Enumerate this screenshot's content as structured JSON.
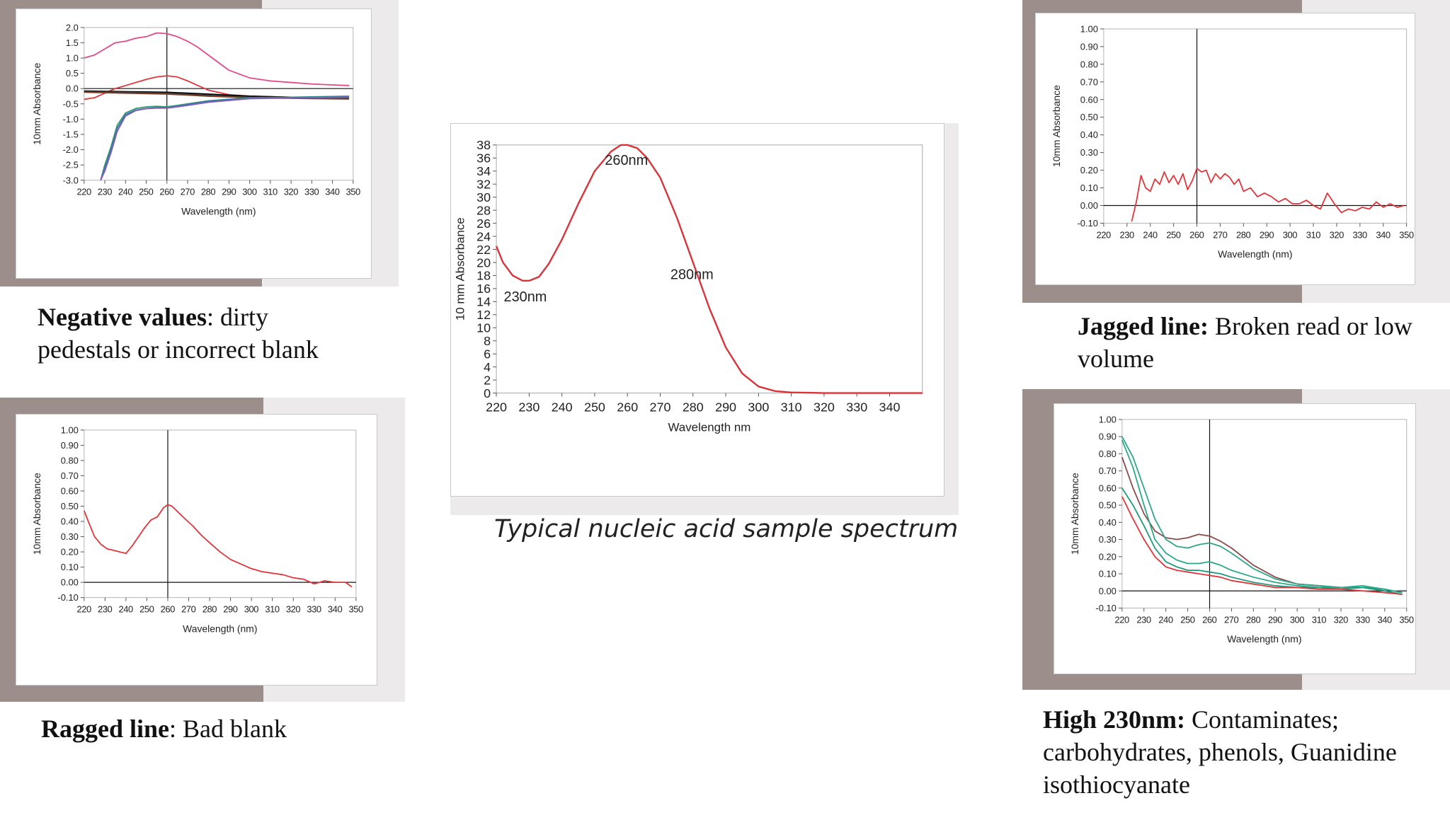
{
  "charts": {
    "negative": {
      "ylabel": "10mm Absorbance",
      "xlabel": "Wavelength (nm)",
      "yticks": [
        "2.0",
        "1.5",
        "1.0",
        "0.5",
        "0.0",
        "-0.5",
        "-1.0",
        "-1.5",
        "-2.0",
        "-2.5",
        "-3.0"
      ],
      "xticks": [
        "220",
        "230",
        "240",
        "250",
        "260",
        "270",
        "280",
        "290",
        "300",
        "310",
        "320",
        "330",
        "340",
        "350"
      ]
    },
    "ragged": {
      "ylabel": "10mm Absorbance",
      "xlabel": "Wavelength (nm)",
      "yticks": [
        "1.00",
        "0.90",
        "0.80",
        "0.70",
        "0.60",
        "0.50",
        "0.40",
        "0.30",
        "0.20",
        "0.10",
        "0.00",
        "-0.10"
      ],
      "xticks": [
        "220",
        "230",
        "240",
        "250",
        "260",
        "270",
        "280",
        "290",
        "300",
        "310",
        "320",
        "330",
        "340",
        "350"
      ]
    },
    "typical": {
      "ylabel": "10 mm Absorbance",
      "xlabel": "Wavelength nm",
      "yticks": [
        "38",
        "36",
        "34",
        "32",
        "30",
        "28",
        "26",
        "24",
        "22",
        "20",
        "18",
        "16",
        "14",
        "12",
        "10",
        "8",
        "6",
        "4",
        "2",
        "0"
      ],
      "xticks": [
        "220",
        "230",
        "240",
        "250",
        "260",
        "270",
        "280",
        "290",
        "300",
        "310",
        "320",
        "330",
        "340"
      ],
      "annotations": [
        "260nm",
        "280nm",
        "230nm"
      ],
      "caption": "Typical nucleic acid sample spectrum"
    },
    "jagged": {
      "ylabel": "10mm Absorbance",
      "xlabel": "Wavelength (nm)",
      "yticks": [
        "1.00",
        "0.90",
        "0.80",
        "0.70",
        "0.60",
        "0.50",
        "0.40",
        "0.30",
        "0.20",
        "0.10",
        "0.00",
        "-0.10"
      ],
      "xticks": [
        "220",
        "230",
        "240",
        "250",
        "260",
        "270",
        "280",
        "290",
        "300",
        "310",
        "320",
        "330",
        "340",
        "350"
      ]
    },
    "high230": {
      "ylabel": "10mm Absorbance",
      "xlabel": "Wavelength (nm)",
      "yticks": [
        "1.00",
        "0.90",
        "0.80",
        "0.70",
        "0.60",
        "0.50",
        "0.40",
        "0.30",
        "0.20",
        "0.10",
        "0.00",
        "-0.10"
      ],
      "xticks": [
        "220",
        "230",
        "240",
        "250",
        "260",
        "270",
        "280",
        "290",
        "300",
        "310",
        "320",
        "330",
        "340",
        "350"
      ]
    }
  },
  "captions": {
    "negative_bold": "Negative values",
    "negative_rest": ": dirty",
    "negative_line2": "pedestals or incorrect blank",
    "ragged_bold": "Ragged line",
    "ragged_rest": ": Bad blank",
    "jagged_bold": "Jagged line:",
    "jagged_rest": " Broken read or low",
    "jagged_line2": "volume",
    "high_bold": "High 230nm:",
    "high_rest": " Contaminates;",
    "high_line2": "carbohydrates, phenols, Guanidine",
    "high_line3": "isothiocyanate"
  },
  "chart_data": [
    {
      "type": "line",
      "id": "negative",
      "xlabel": "Wavelength (nm)",
      "ylabel": "10mm Absorbance",
      "xlim": [
        220,
        350
      ],
      "ylim": [
        -3.0,
        2.0
      ],
      "marker_x": 260,
      "series": [
        {
          "color": "#e04a8a",
          "x": [
            220,
            225,
            230,
            235,
            240,
            245,
            250,
            255,
            260,
            265,
            270,
            275,
            280,
            290,
            300,
            310,
            320,
            330,
            340,
            348
          ],
          "y": [
            1.0,
            1.1,
            1.3,
            1.5,
            1.55,
            1.65,
            1.7,
            1.82,
            1.8,
            1.7,
            1.55,
            1.35,
            1.1,
            0.6,
            0.35,
            0.25,
            0.2,
            0.15,
            0.12,
            0.1
          ]
        },
        {
          "color": "#e0353a",
          "x": [
            220,
            225,
            230,
            235,
            240,
            245,
            250,
            255,
            260,
            265,
            270,
            275,
            280,
            290,
            300,
            320,
            348
          ],
          "y": [
            -0.35,
            -0.3,
            -0.15,
            0.0,
            0.1,
            0.2,
            0.3,
            0.38,
            0.42,
            0.38,
            0.25,
            0.1,
            -0.05,
            -0.2,
            -0.25,
            -0.28,
            -0.3
          ]
        },
        {
          "color": "#000000",
          "x": [
            220,
            240,
            260,
            280,
            300,
            320,
            348
          ],
          "y": [
            -0.08,
            -0.1,
            -0.12,
            -0.18,
            -0.25,
            -0.28,
            -0.3
          ]
        },
        {
          "color": "#3a3a3a",
          "x": [
            220,
            240,
            260,
            280,
            300,
            320,
            348
          ],
          "y": [
            -0.1,
            -0.12,
            -0.15,
            -0.22,
            -0.28,
            -0.3,
            -0.32
          ]
        },
        {
          "color": "#7a3f2a",
          "x": [
            220,
            240,
            260,
            280,
            300,
            320,
            348
          ],
          "y": [
            -0.12,
            -0.15,
            -0.18,
            -0.25,
            -0.3,
            -0.32,
            -0.34
          ]
        },
        {
          "color": "#2e9e6e",
          "x": [
            228,
            230,
            233,
            236,
            240,
            245,
            250,
            255,
            260,
            265,
            270,
            275,
            280,
            290,
            300,
            320,
            348
          ],
          "y": [
            -3.0,
            -2.5,
            -1.9,
            -1.2,
            -0.8,
            -0.65,
            -0.6,
            -0.58,
            -0.6,
            -0.55,
            -0.5,
            -0.45,
            -0.4,
            -0.35,
            -0.3,
            -0.28,
            -0.25
          ]
        },
        {
          "color": "#3a6fb5",
          "x": [
            228,
            230,
            233,
            236,
            240,
            245,
            250,
            255,
            260,
            265,
            270,
            275,
            280,
            290,
            300,
            320,
            348
          ],
          "y": [
            -3.0,
            -2.6,
            -2.0,
            -1.3,
            -0.85,
            -0.7,
            -0.65,
            -0.62,
            -0.62,
            -0.58,
            -0.52,
            -0.47,
            -0.42,
            -0.36,
            -0.32,
            -0.29,
            -0.27
          ]
        },
        {
          "color": "#8a5fb0",
          "x": [
            228,
            230,
            233,
            236,
            240,
            245,
            250,
            255,
            260,
            265,
            270,
            280,
            300,
            348
          ],
          "y": [
            -3.0,
            -2.7,
            -2.1,
            -1.4,
            -0.9,
            -0.72,
            -0.66,
            -0.64,
            -0.64,
            -0.6,
            -0.55,
            -0.45,
            -0.33,
            -0.28
          ]
        }
      ]
    },
    {
      "type": "line",
      "id": "ragged",
      "xlabel": "Wavelength (nm)",
      "ylabel": "10mm Absorbance",
      "xlim": [
        220,
        350
      ],
      "ylim": [
        -0.1,
        1.0
      ],
      "marker_x": 260,
      "series": [
        {
          "color": "#e0353a",
          "x": [
            220,
            222,
            225,
            228,
            231,
            234,
            237,
            240,
            243,
            246,
            249,
            252,
            255,
            258,
            260,
            262,
            265,
            268,
            272,
            276,
            280,
            285,
            290,
            295,
            300,
            305,
            310,
            315,
            320,
            325,
            330,
            335,
            340,
            345,
            348
          ],
          "y": [
            0.47,
            0.4,
            0.3,
            0.25,
            0.22,
            0.21,
            0.2,
            0.19,
            0.24,
            0.3,
            0.36,
            0.41,
            0.43,
            0.49,
            0.51,
            0.5,
            0.46,
            0.42,
            0.37,
            0.31,
            0.26,
            0.2,
            0.15,
            0.12,
            0.09,
            0.07,
            0.06,
            0.05,
            0.03,
            0.02,
            -0.01,
            0.01,
            0.0,
            0.0,
            -0.03
          ]
        }
      ]
    },
    {
      "type": "line",
      "id": "typical",
      "xlabel": "Wavelength nm",
      "ylabel": "10 mm Absorbance",
      "xlim": [
        220,
        350
      ],
      "ylim": [
        0,
        38
      ],
      "series": [
        {
          "color": "#d9333a",
          "x": [
            220,
            222,
            225,
            228,
            230,
            233,
            236,
            240,
            245,
            250,
            255,
            258,
            260,
            263,
            266,
            270,
            275,
            280,
            285,
            290,
            295,
            300,
            305,
            310,
            315,
            320,
            330,
            340,
            350
          ],
          "y": [
            22.5,
            20,
            18,
            17.2,
            17.2,
            17.8,
            19.8,
            23.5,
            29,
            34,
            37,
            38,
            38,
            37.5,
            36,
            33,
            27,
            20,
            13,
            7,
            3,
            1,
            0.3,
            0.1,
            0.05,
            0,
            0,
            0,
            0
          ]
        }
      ],
      "annotations": [
        {
          "text": "260nm",
          "x": 260,
          "y": 35.8
        },
        {
          "text": "280nm",
          "x": 280,
          "y": 18.3
        },
        {
          "text": "230nm",
          "x": 230,
          "y": 14.9
        }
      ]
    },
    {
      "type": "line",
      "id": "jagged",
      "xlabel": "Wavelength (nm)",
      "ylabel": "10mm Absorbance",
      "xlim": [
        220,
        350
      ],
      "ylim": [
        -0.1,
        1.0
      ],
      "marker_x": 260,
      "series": [
        {
          "color": "#e0353a",
          "x": [
            232,
            234,
            236,
            238,
            240,
            242,
            244,
            246,
            248,
            250,
            252,
            254,
            256,
            258,
            260,
            262,
            264,
            266,
            268,
            270,
            272,
            274,
            276,
            278,
            280,
            283,
            286,
            289,
            292,
            295,
            298,
            301,
            304,
            307,
            310,
            313,
            316,
            319,
            322,
            325,
            328,
            331,
            334,
            337,
            340,
            343,
            346,
            349
          ],
          "y": [
            -0.09,
            0.02,
            0.17,
            0.1,
            0.08,
            0.15,
            0.12,
            0.19,
            0.13,
            0.17,
            0.12,
            0.18,
            0.09,
            0.14,
            0.21,
            0.19,
            0.2,
            0.13,
            0.18,
            0.15,
            0.18,
            0.16,
            0.12,
            0.15,
            0.08,
            0.1,
            0.05,
            0.07,
            0.05,
            0.02,
            0.04,
            0.01,
            0.01,
            0.03,
            0.0,
            -0.02,
            0.07,
            0.01,
            -0.04,
            -0.02,
            -0.03,
            -0.01,
            -0.02,
            0.02,
            -0.01,
            0.01,
            -0.01,
            0.0
          ]
        }
      ]
    },
    {
      "type": "line",
      "id": "high230",
      "xlabel": "Wavelength (nm)",
      "ylabel": "10mm Absorbance",
      "xlim": [
        220,
        350
      ],
      "ylim": [
        -0.1,
        1.0
      ],
      "marker_x": 260,
      "series": [
        {
          "color": "#8b4a4a",
          "x": [
            220,
            225,
            230,
            235,
            240,
            245,
            250,
            255,
            260,
            265,
            270,
            280,
            290,
            300,
            310,
            320,
            330,
            340,
            348
          ],
          "y": [
            0.78,
            0.6,
            0.45,
            0.35,
            0.31,
            0.3,
            0.31,
            0.33,
            0.32,
            0.29,
            0.25,
            0.15,
            0.08,
            0.04,
            0.03,
            0.02,
            0.02,
            0.01,
            -0.01
          ]
        },
        {
          "color": "#2ea58a",
          "x": [
            220,
            225,
            230,
            235,
            240,
            245,
            250,
            255,
            260,
            265,
            270,
            280,
            290,
            300,
            310,
            320,
            330,
            340,
            348
          ],
          "y": [
            0.9,
            0.78,
            0.6,
            0.42,
            0.3,
            0.26,
            0.25,
            0.27,
            0.28,
            0.26,
            0.22,
            0.13,
            0.07,
            0.04,
            0.03,
            0.02,
            0.02,
            0.01,
            -0.01
          ]
        },
        {
          "color": "#29a98a",
          "x": [
            220,
            225,
            230,
            235,
            240,
            245,
            250,
            255,
            260,
            265,
            270,
            280,
            290,
            300,
            310,
            320,
            330,
            340,
            348
          ],
          "y": [
            0.88,
            0.72,
            0.5,
            0.3,
            0.22,
            0.18,
            0.16,
            0.16,
            0.17,
            0.15,
            0.12,
            0.08,
            0.05,
            0.03,
            0.02,
            0.02,
            0.03,
            0.01,
            -0.01
          ]
        },
        {
          "color": "#1e9a7a",
          "x": [
            220,
            225,
            230,
            235,
            240,
            245,
            250,
            255,
            260,
            265,
            270,
            280,
            290,
            300,
            310,
            320,
            330,
            340,
            348
          ],
          "y": [
            0.6,
            0.5,
            0.38,
            0.25,
            0.17,
            0.14,
            0.12,
            0.12,
            0.11,
            0.1,
            0.08,
            0.05,
            0.03,
            0.02,
            0.02,
            0.01,
            0.02,
            0.0,
            -0.02
          ]
        },
        {
          "color": "#e0353a",
          "x": [
            220,
            225,
            230,
            235,
            240,
            245,
            250,
            255,
            260,
            265,
            270,
            280,
            290,
            300,
            310,
            320,
            330,
            340,
            348
          ],
          "y": [
            0.55,
            0.42,
            0.3,
            0.2,
            0.14,
            0.12,
            0.11,
            0.1,
            0.09,
            0.08,
            0.06,
            0.04,
            0.02,
            0.02,
            0.01,
            0.01,
            0.0,
            -0.01,
            -0.02
          ]
        }
      ]
    }
  ]
}
